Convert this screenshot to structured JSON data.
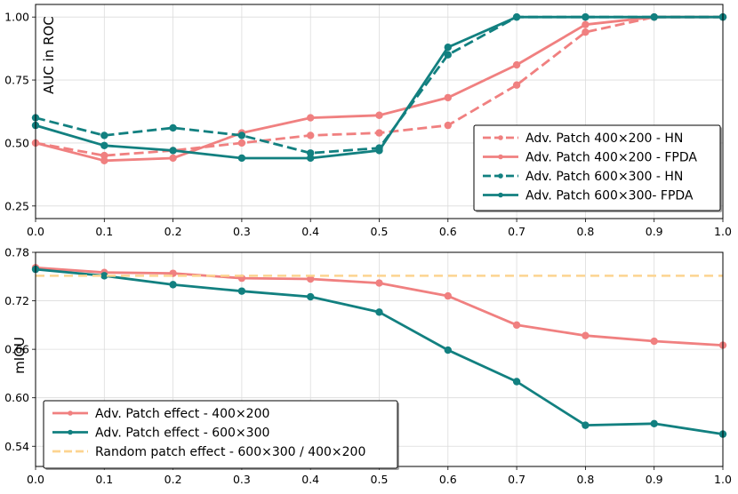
{
  "chart_data": [
    {
      "type": "line",
      "xlabel": "",
      "ylabel": "AUC in ROC",
      "xlim": [
        0.0,
        1.0
      ],
      "ylim": [
        0.2,
        1.05
      ],
      "x_ticks": [
        "0.0",
        "0.1",
        "0.2",
        "0.3",
        "0.4",
        "0.5",
        "0.6",
        "0.7",
        "0.8",
        "0.9",
        "1.0"
      ],
      "y_ticks": [
        {
          "value": 0.25,
          "label": "0.25"
        },
        {
          "value": 0.5,
          "label": "0.50"
        },
        {
          "value": 0.75,
          "label": "0.75"
        },
        {
          "value": 1.0,
          "label": "1.00"
        }
      ],
      "grid": true,
      "legend_position": "lower-right",
      "x": [
        0.0,
        0.1,
        0.2,
        0.3,
        0.4,
        0.5,
        0.6,
        0.7,
        0.8,
        0.9,
        1.0
      ],
      "series": [
        {
          "name": "Adv. Patch 400×200 - HN",
          "color": "#f08080",
          "dashed": true,
          "values": [
            0.5,
            0.45,
            0.47,
            0.5,
            0.53,
            0.54,
            0.57,
            0.73,
            0.94,
            1.0,
            1.0
          ]
        },
        {
          "name": "Adv. Patch 400×200 - FPDA",
          "color": "#f08080",
          "dashed": false,
          "values": [
            0.5,
            0.43,
            0.44,
            0.54,
            0.6,
            0.61,
            0.68,
            0.81,
            0.97,
            1.0,
            1.0
          ]
        },
        {
          "name": "Adv. Patch 600×300 - HN",
          "color": "#128080",
          "dashed": true,
          "values": [
            0.6,
            0.53,
            0.56,
            0.53,
            0.46,
            0.48,
            0.85,
            1.0,
            1.0,
            1.0,
            1.0
          ]
        },
        {
          "name": "Adv. Patch 600×300- FPDA",
          "color": "#128080",
          "dashed": false,
          "values": [
            0.57,
            0.49,
            0.47,
            0.44,
            0.44,
            0.47,
            0.88,
            1.0,
            1.0,
            1.0,
            1.0
          ]
        }
      ]
    },
    {
      "type": "line",
      "xlabel": "",
      "ylabel": "mIOU",
      "xlim": [
        0.0,
        1.0
      ],
      "ylim": [
        0.515,
        0.78
      ],
      "x_ticks": [
        "0.0",
        "0.1",
        "0.2",
        "0.3",
        "0.4",
        "0.5",
        "0.6",
        "0.7",
        "0.8",
        "0.9",
        "1.0"
      ],
      "y_ticks": [
        {
          "value": 0.54,
          "label": "0.54"
        },
        {
          "value": 0.6,
          "label": "0.60"
        },
        {
          "value": 0.66,
          "label": "0.66"
        },
        {
          "value": 0.72,
          "label": "0.72"
        },
        {
          "value": 0.78,
          "label": "0.78"
        }
      ],
      "grid": true,
      "legend_position": "lower-left",
      "x": [
        0.0,
        0.1,
        0.2,
        0.3,
        0.4,
        0.5,
        0.6,
        0.7,
        0.8,
        0.9,
        1.0
      ],
      "series": [
        {
          "name": "Adv. Patch effect - 400×200",
          "color": "#f08080",
          "dashed": false,
          "markers": true,
          "values": [
            0.761,
            0.755,
            0.754,
            0.748,
            0.747,
            0.742,
            0.726,
            0.69,
            0.677,
            0.67,
            0.665
          ]
        },
        {
          "name": "Adv. Patch effect - 600×300",
          "color": "#128080",
          "dashed": false,
          "markers": true,
          "values": [
            0.759,
            0.751,
            0.74,
            0.732,
            0.725,
            0.706,
            0.659,
            0.62,
            0.566,
            0.568,
            0.555
          ]
        },
        {
          "name": "Random patch effect - 600×300 / 400×200",
          "color": "#fcd490",
          "dashed": true,
          "markers": false,
          "values": [
            0.751,
            0.751,
            0.751,
            0.751,
            0.751,
            0.751,
            0.751,
            0.751,
            0.751,
            0.751,
            0.751
          ]
        }
      ]
    }
  ]
}
